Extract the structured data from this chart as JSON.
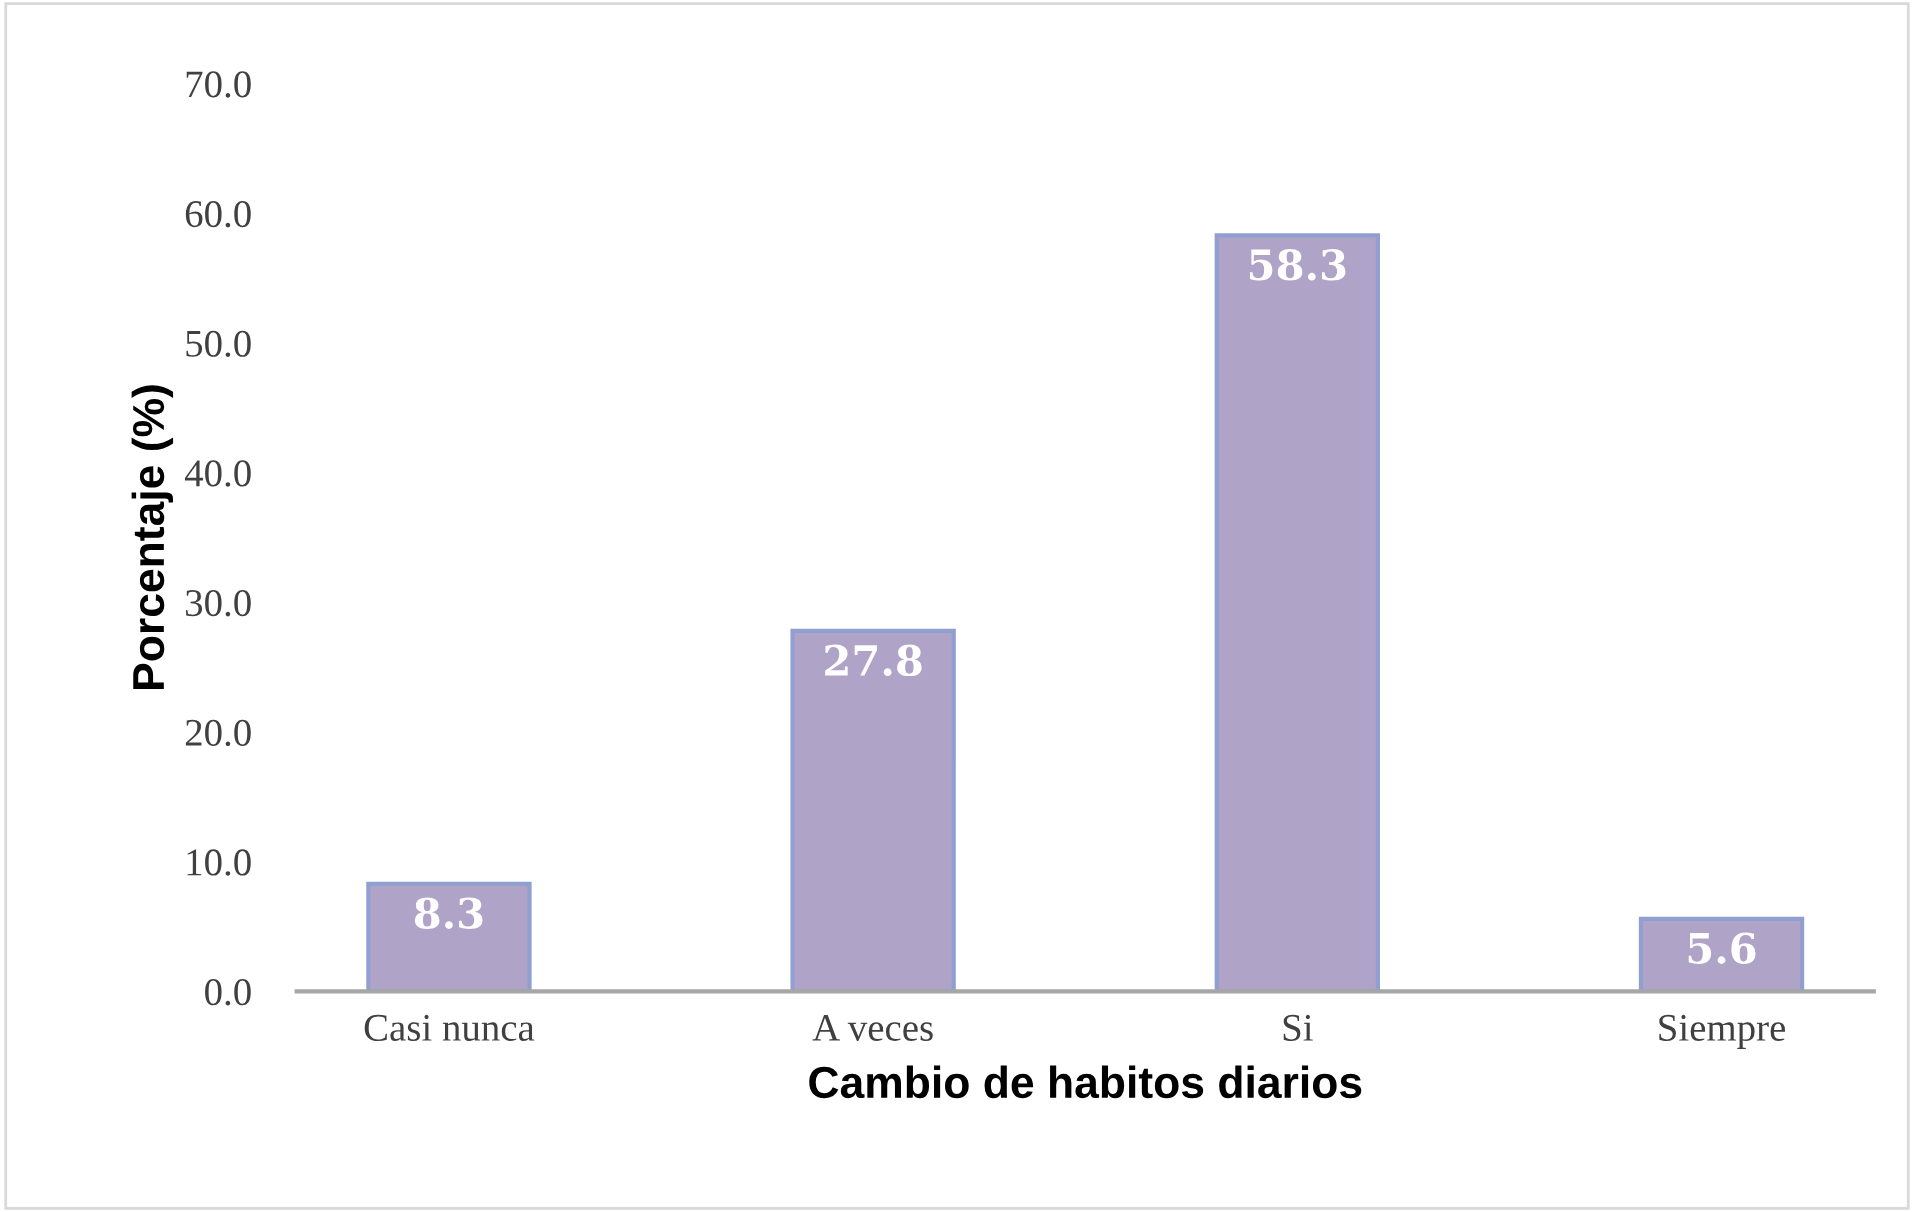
{
  "chart_data": {
    "type": "bar",
    "xlabel": "Cambio de habitos diarios",
    "ylabel": "Porcentaje (%)",
    "categories": [
      "Casi nunca",
      "A veces",
      "Si",
      "Siempre"
    ],
    "values": [
      8.3,
      27.8,
      58.3,
      5.6
    ],
    "color": "#b0a3c8",
    "ylim": [
      0,
      70
    ],
    "yticks": [
      {
        "value": 0,
        "label": "0.0"
      },
      {
        "value": 10,
        "label": "10.0"
      },
      {
        "value": 20,
        "label": "20.0"
      },
      {
        "value": 30,
        "label": "30.0"
      },
      {
        "value": 40,
        "label": "40.0"
      },
      {
        "value": 50,
        "label": "50.0"
      },
      {
        "value": 60,
        "label": "60.0"
      },
      {
        "value": 70,
        "label": "70.0"
      }
    ],
    "data_labels": true,
    "grid": false,
    "legend": false
  }
}
